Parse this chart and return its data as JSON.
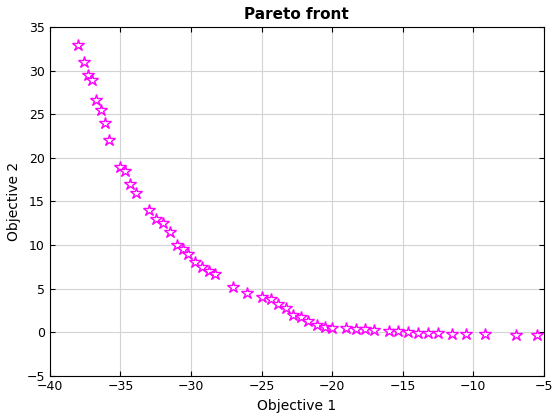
{
  "title": "Pareto front",
  "xlabel": "Objective 1",
  "ylabel": "Objective 2",
  "xlim": [
    -40,
    -5
  ],
  "ylim": [
    -5,
    35
  ],
  "xticks": [
    -40,
    -35,
    -30,
    -25,
    -20,
    -15,
    -10,
    -5
  ],
  "yticks": [
    -5,
    0,
    5,
    10,
    15,
    20,
    25,
    30,
    35
  ],
  "marker": "*",
  "marker_color": "#ff00ff",
  "marker_size": 9,
  "x": [
    -38.0,
    -37.6,
    -37.3,
    -37.0,
    -36.7,
    -36.4,
    -36.1,
    -35.8,
    -35.0,
    -34.7,
    -34.3,
    -33.9,
    -33.0,
    -32.5,
    -32.0,
    -31.5,
    -31.0,
    -30.6,
    -30.2,
    -29.7,
    -29.2,
    -28.7,
    -28.3,
    -27.0,
    -26.0,
    -25.0,
    -24.3,
    -23.8,
    -23.3,
    -22.8,
    -22.2,
    -21.7,
    -21.1,
    -20.5,
    -20.0,
    -19.0,
    -18.3,
    -17.7,
    -17.0,
    -16.0,
    -15.3,
    -14.6,
    -13.9,
    -13.2,
    -12.5,
    -11.5,
    -10.5,
    -9.2,
    -7.0,
    -5.5
  ],
  "y": [
    33.0,
    31.0,
    29.5,
    29.0,
    26.7,
    25.5,
    24.0,
    22.0,
    19.0,
    18.5,
    17.0,
    16.0,
    14.0,
    13.0,
    12.5,
    11.5,
    10.0,
    9.5,
    9.0,
    8.0,
    7.5,
    7.0,
    6.7,
    5.2,
    4.5,
    4.0,
    3.8,
    3.2,
    2.8,
    2.0,
    1.7,
    1.3,
    0.8,
    0.6,
    0.5,
    0.5,
    0.4,
    0.3,
    0.2,
    0.15,
    0.1,
    0.0,
    -0.05,
    -0.1,
    -0.1,
    -0.2,
    -0.2,
    -0.25,
    -0.3,
    -0.3
  ],
  "grid": true,
  "grid_color": "#d3d3d3",
  "background_color": "#ffffff",
  "title_fontsize": 11,
  "label_fontsize": 10
}
